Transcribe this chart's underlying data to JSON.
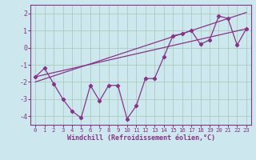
{
  "title": "",
  "xlabel": "Windchill (Refroidissement éolien,°C)",
  "ylabel": "",
  "background_color": "#cce8ee",
  "grid_color": "#aaccbb",
  "line_color": "#883388",
  "xlim": [
    -0.5,
    23.5
  ],
  "ylim": [
    -4.5,
    2.5
  ],
  "yticks": [
    -4,
    -3,
    -2,
    -1,
    0,
    1,
    2
  ],
  "xticks": [
    0,
    1,
    2,
    3,
    4,
    5,
    6,
    7,
    8,
    9,
    10,
    11,
    12,
    13,
    14,
    15,
    16,
    17,
    18,
    19,
    20,
    21,
    22,
    23
  ],
  "series_main": {
    "x": [
      0,
      1,
      2,
      3,
      4,
      5,
      6,
      7,
      8,
      9,
      10,
      11,
      12,
      13,
      14,
      15,
      16,
      17,
      18,
      19,
      20,
      21,
      22,
      23
    ],
    "y": [
      -1.7,
      -1.2,
      -2.1,
      -3.0,
      -3.7,
      -4.1,
      -2.2,
      -3.1,
      -2.2,
      -2.2,
      -4.15,
      -3.4,
      -1.8,
      -1.8,
      -0.55,
      0.7,
      0.8,
      1.0,
      0.2,
      0.45,
      1.85,
      1.7,
      0.15,
      1.1
    ]
  },
  "line1": {
    "x": [
      0,
      23
    ],
    "y": [
      -1.7,
      1.1
    ]
  },
  "line2": {
    "x": [
      0,
      23
    ],
    "y": [
      -2.0,
      2.05
    ]
  }
}
